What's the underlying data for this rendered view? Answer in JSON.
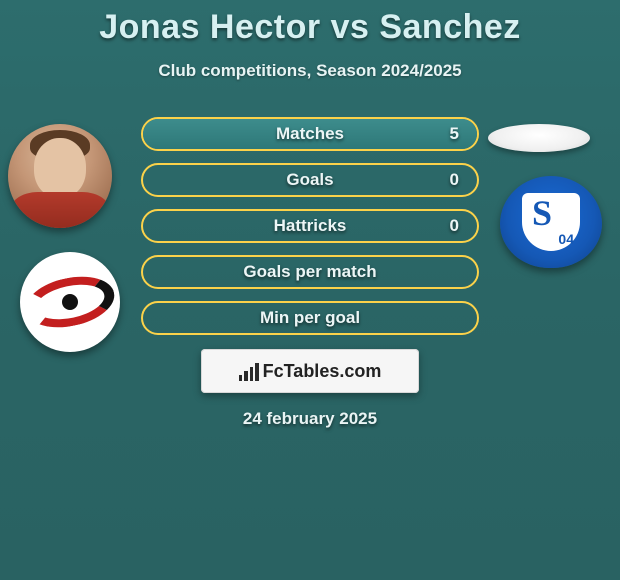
{
  "title": "Jonas Hector vs Sanchez",
  "subtitle": "Club competitions, Season 2024/2025",
  "date": "24 february 2025",
  "site_name": "FcTables.com",
  "colors": {
    "background": "#2b6b6b",
    "bar_border": "#fbd24a",
    "bar_fill_top": "#3d8c8c",
    "bar_fill_bottom": "#2e7878",
    "text_light": "#e7f4f4",
    "schalke_blue": "#1558b5",
    "hurricane_red": "#c31f1f"
  },
  "stats": [
    {
      "label": "Matches",
      "value": "5",
      "filled": true,
      "show_value": true
    },
    {
      "label": "Goals",
      "value": "0",
      "filled": false,
      "show_value": true
    },
    {
      "label": "Hattricks",
      "value": "0",
      "filled": false,
      "show_value": true
    },
    {
      "label": "Goals per match",
      "value": "",
      "filled": false,
      "show_value": false
    },
    {
      "label": "Min per goal",
      "value": "",
      "filled": false,
      "show_value": false
    }
  ],
  "player_left": {
    "name": "Jonas Hector"
  },
  "player_right": {
    "name": "Sanchez"
  },
  "club_left": {
    "name": "Carolina Hurricanes style logo"
  },
  "club_right": {
    "name": "Schalke 04",
    "short": "S",
    "num": "04"
  }
}
